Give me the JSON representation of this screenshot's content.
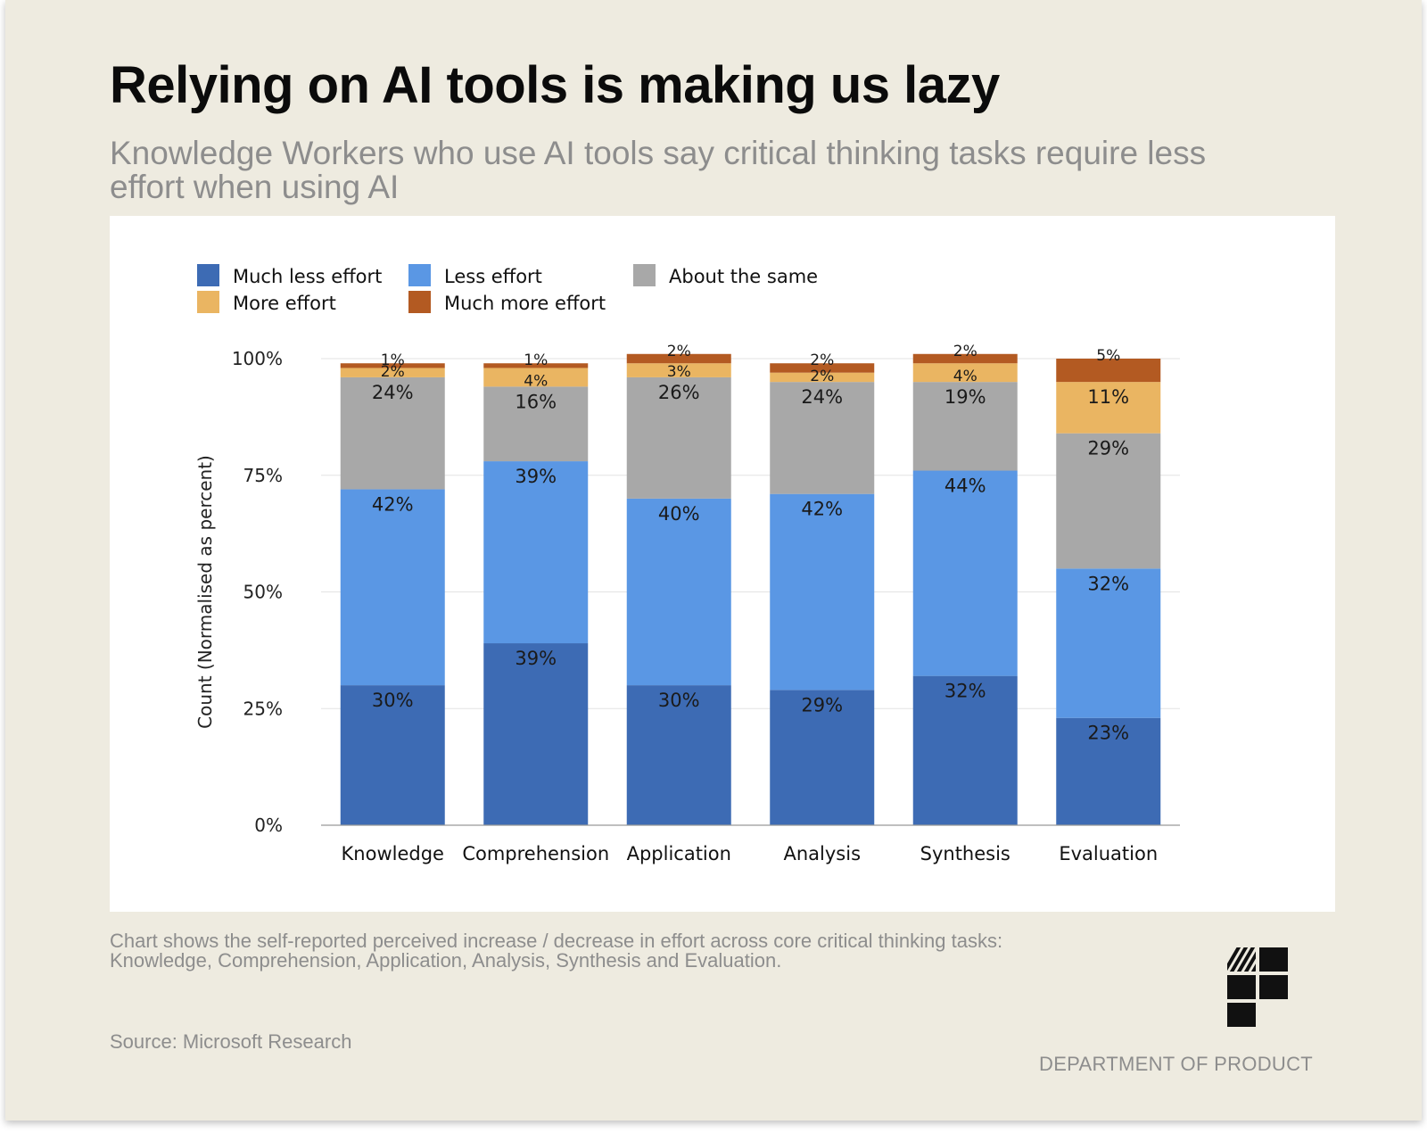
{
  "header": {
    "title": "Relying on AI tools is making us lazy",
    "subtitle": "Knowledge Workers who use AI tools say critical thinking tasks require less effort when using AI"
  },
  "footer": {
    "note": "Chart shows the self-reported perceived increase / decrease in effort across core critical thinking tasks: Knowledge, Comprehension, Application, Analysis, Synthesis and Evaluation.",
    "source": "Source: Microsoft Research",
    "brand": "DEPARTMENT OF PRODUCT"
  },
  "colors": {
    "background": "#eeebe0",
    "much_less_effort": "#3d6bb4",
    "less_effort": "#5a97e4",
    "about_the_same": "#a8a8a8",
    "more_effort": "#eab562",
    "much_more_effort": "#b35a22"
  },
  "chart_data": {
    "type": "bar",
    "stacked": true,
    "title": "",
    "xlabel": "",
    "ylabel": "Count (Normalised as percent)",
    "ylim": [
      0,
      100
    ],
    "yticks": [
      "0%",
      "25%",
      "50%",
      "75%",
      "100%"
    ],
    "grid": true,
    "legend_position": "top-left",
    "categories": [
      "Knowledge",
      "Comprehension",
      "Application",
      "Analysis",
      "Synthesis",
      "Evaluation"
    ],
    "series": [
      {
        "name": "Much less effort",
        "color": "#3d6bb4",
        "values": [
          30,
          39,
          30,
          29,
          32,
          23
        ]
      },
      {
        "name": "Less effort",
        "color": "#5a97e4",
        "values": [
          42,
          39,
          40,
          42,
          44,
          32
        ]
      },
      {
        "name": "About the same",
        "color": "#a8a8a8",
        "values": [
          24,
          16,
          26,
          24,
          19,
          29
        ]
      },
      {
        "name": "More effort",
        "color": "#eab562",
        "values": [
          2,
          4,
          3,
          2,
          4,
          11
        ]
      },
      {
        "name": "Much more effort",
        "color": "#b35a22",
        "values": [
          1,
          1,
          2,
          2,
          2,
          5
        ]
      }
    ]
  }
}
